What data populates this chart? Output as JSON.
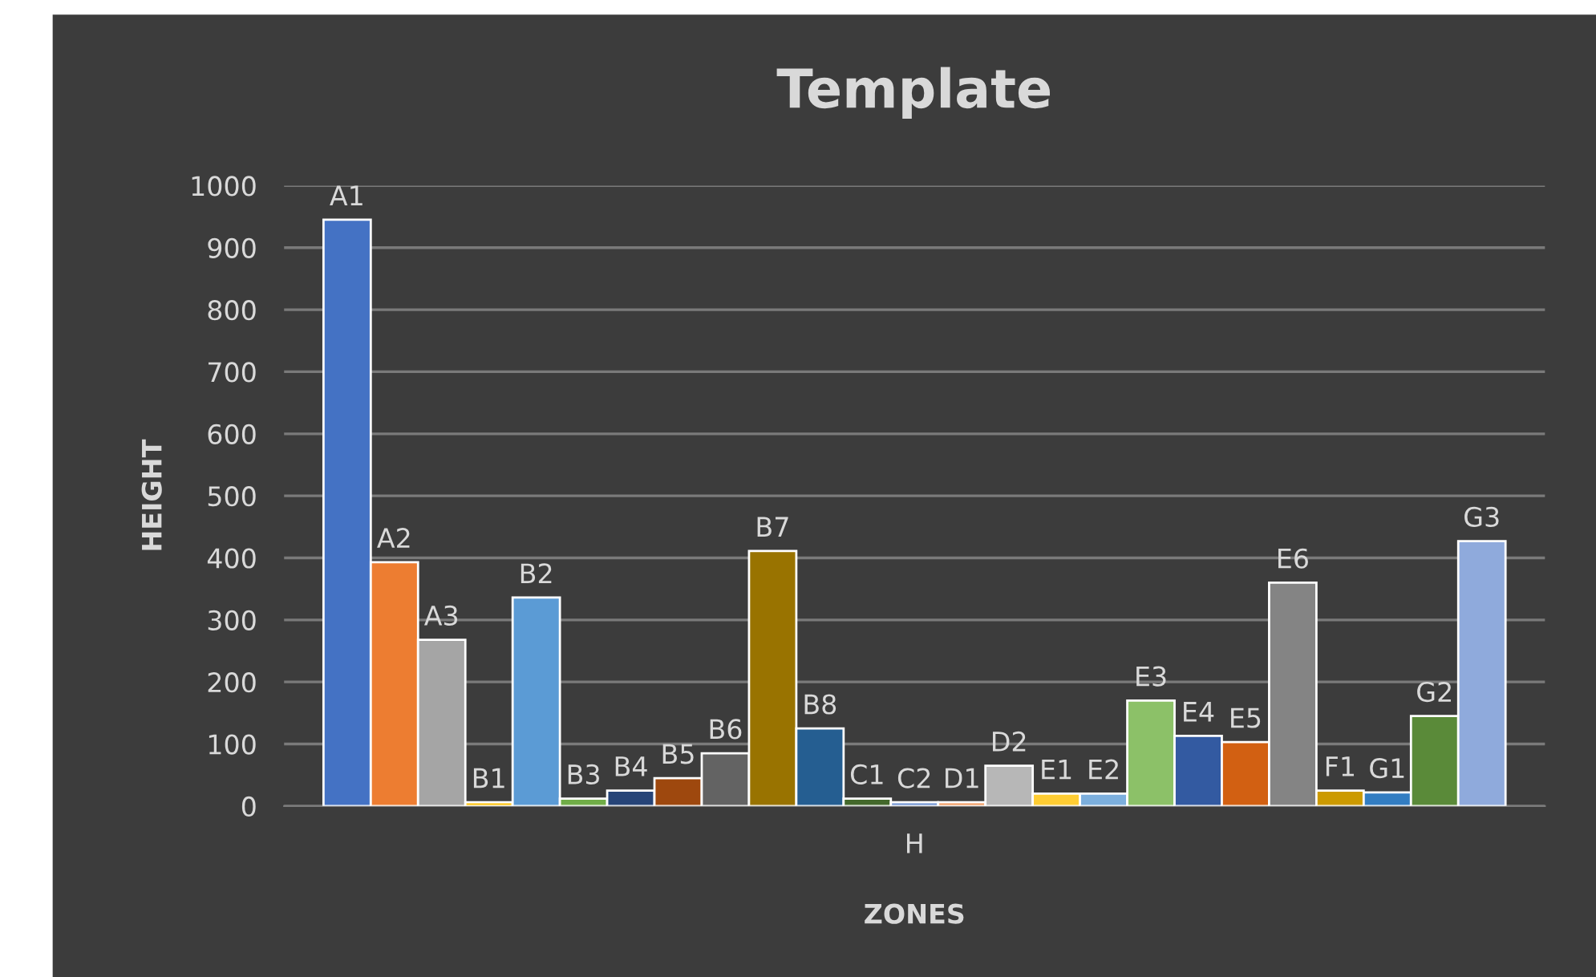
{
  "chart_data": {
    "type": "bar",
    "title": "Template",
    "xlabel": "ZONES",
    "ylabel": "HEIGHT",
    "categories": [
      "H"
    ],
    "series": [
      {
        "name": "A1",
        "color": "#4472c4",
        "values": [
          945
        ]
      },
      {
        "name": "A2",
        "color": "#ed7d31",
        "values": [
          393
        ]
      },
      {
        "name": "A3",
        "color": "#a5a5a5",
        "values": [
          268
        ]
      },
      {
        "name": "B1",
        "color": "#ffc000",
        "values": [
          6
        ]
      },
      {
        "name": "B2",
        "color": "#5b9bd5",
        "values": [
          336
        ]
      },
      {
        "name": "B3",
        "color": "#70ad47",
        "values": [
          12
        ]
      },
      {
        "name": "B4",
        "color": "#264478",
        "values": [
          25
        ]
      },
      {
        "name": "B5",
        "color": "#9e480e",
        "values": [
          45
        ]
      },
      {
        "name": "B6",
        "color": "#636363",
        "values": [
          85
        ]
      },
      {
        "name": "B7",
        "color": "#997300",
        "values": [
          411
        ]
      },
      {
        "name": "B8",
        "color": "#255e91",
        "values": [
          125
        ]
      },
      {
        "name": "C1",
        "color": "#43682b",
        "values": [
          12
        ]
      },
      {
        "name": "C2",
        "color": "#698ed0",
        "values": [
          6
        ]
      },
      {
        "name": "D1",
        "color": "#f1975a",
        "values": [
          6
        ]
      },
      {
        "name": "D2",
        "color": "#b7b7b7",
        "values": [
          65
        ]
      },
      {
        "name": "E1",
        "color": "#ffcd33",
        "values": [
          20
        ]
      },
      {
        "name": "E2",
        "color": "#7cafdd",
        "values": [
          20
        ]
      },
      {
        "name": "E3",
        "color": "#8cc168",
        "values": [
          170
        ]
      },
      {
        "name": "E4",
        "color": "#335aa1",
        "values": [
          113
        ]
      },
      {
        "name": "E5",
        "color": "#d26012",
        "values": [
          103
        ]
      },
      {
        "name": "E6",
        "color": "#848484",
        "values": [
          360
        ]
      },
      {
        "name": "F1",
        "color": "#cc9a00",
        "values": [
          25
        ]
      },
      {
        "name": "G1",
        "color": "#327dc2",
        "values": [
          22
        ]
      },
      {
        "name": "G2",
        "color": "#5a8a39",
        "values": [
          145
        ]
      },
      {
        "name": "G3",
        "color": "#8faadc",
        "values": [
          427
        ]
      }
    ],
    "ylim": [
      0,
      1000
    ],
    "yticks": [
      0,
      100,
      200,
      300,
      400,
      500,
      600,
      700,
      800,
      900,
      1000
    ],
    "grid": "y",
    "legend": false
  }
}
